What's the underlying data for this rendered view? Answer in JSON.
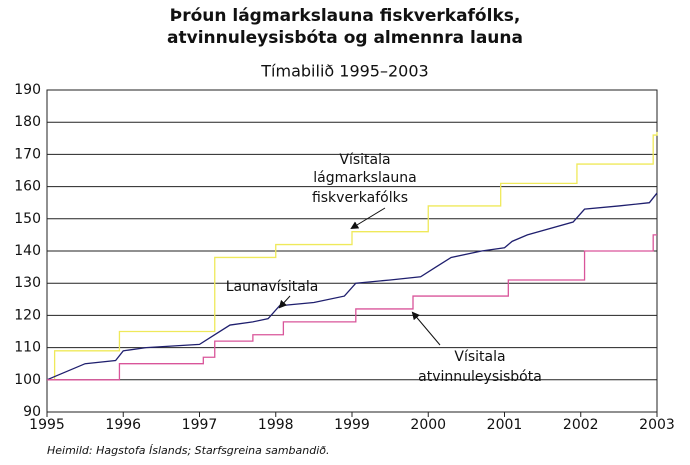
{
  "chart_data": {
    "type": "line",
    "title": [
      "Þróun lágmarkslauna fiskverkafólks,",
      "atvinnuleysisbóta og almennra launa"
    ],
    "subtitle": "Tímabilið 1995–2003",
    "source": "Heimild: Hagstofa Íslands; Starfsgreina sambandið.",
    "xlim": [
      1995,
      2003
    ],
    "xticks": [
      1995,
      1996,
      1997,
      1998,
      1999,
      2000,
      2001,
      2002,
      2003
    ],
    "ylim": [
      90,
      190
    ],
    "yticks": [
      90,
      100,
      110,
      120,
      130,
      140,
      150,
      160,
      170,
      180,
      190
    ],
    "grid": true,
    "annotations": [
      {
        "lines": [
          "Vísitala",
          "lágmarkslauna",
          "fiskverkafólks"
        ]
      },
      {
        "lines": [
          "Launavísitala"
        ]
      },
      {
        "lines": [
          "Vísitala",
          "atvinnuleysisbóta"
        ]
      }
    ],
    "series": [
      {
        "color": "#efe95a",
        "step": true,
        "x": [
          1995,
          1995.1,
          1995.95,
          1997.2,
          1998.0,
          1999.0,
          2000.0,
          2000.95,
          2001.95,
          2002.95,
          2003
        ],
        "values": [
          100,
          109,
          115,
          138,
          142,
          146,
          154,
          161,
          167,
          176,
          177
        ]
      },
      {
        "color": "#1f1f6e",
        "step": false,
        "x": [
          1995,
          1995.1,
          1995.5,
          1995.9,
          1996.0,
          1996.3,
          1997.0,
          1997.2,
          1997.4,
          1997.7,
          1997.9,
          1998.05,
          1998.5,
          1998.9,
          1999.05,
          1999.5,
          1999.9,
          2000.1,
          2000.3,
          2000.7,
          2001.0,
          2001.1,
          2001.3,
          2001.9,
          2002.05,
          2002.5,
          2002.9,
          2003
        ],
        "values": [
          100,
          101,
          105,
          106,
          109,
          110,
          111,
          114,
          117,
          118,
          119,
          123,
          124,
          126,
          130,
          131,
          132,
          135,
          138,
          140,
          141,
          143,
          145,
          149,
          153,
          154,
          155,
          158
        ]
      },
      {
        "color": "#d9559a",
        "step": true,
        "x": [
          1995,
          1995.95,
          1997.05,
          1997.2,
          1997.7,
          1998.1,
          1999.05,
          1999.8,
          2001.05,
          2002.05,
          2002.95,
          2003
        ],
        "values": [
          100,
          105,
          107,
          112,
          114,
          118,
          122,
          126,
          131,
          140,
          145,
          145
        ]
      }
    ]
  }
}
